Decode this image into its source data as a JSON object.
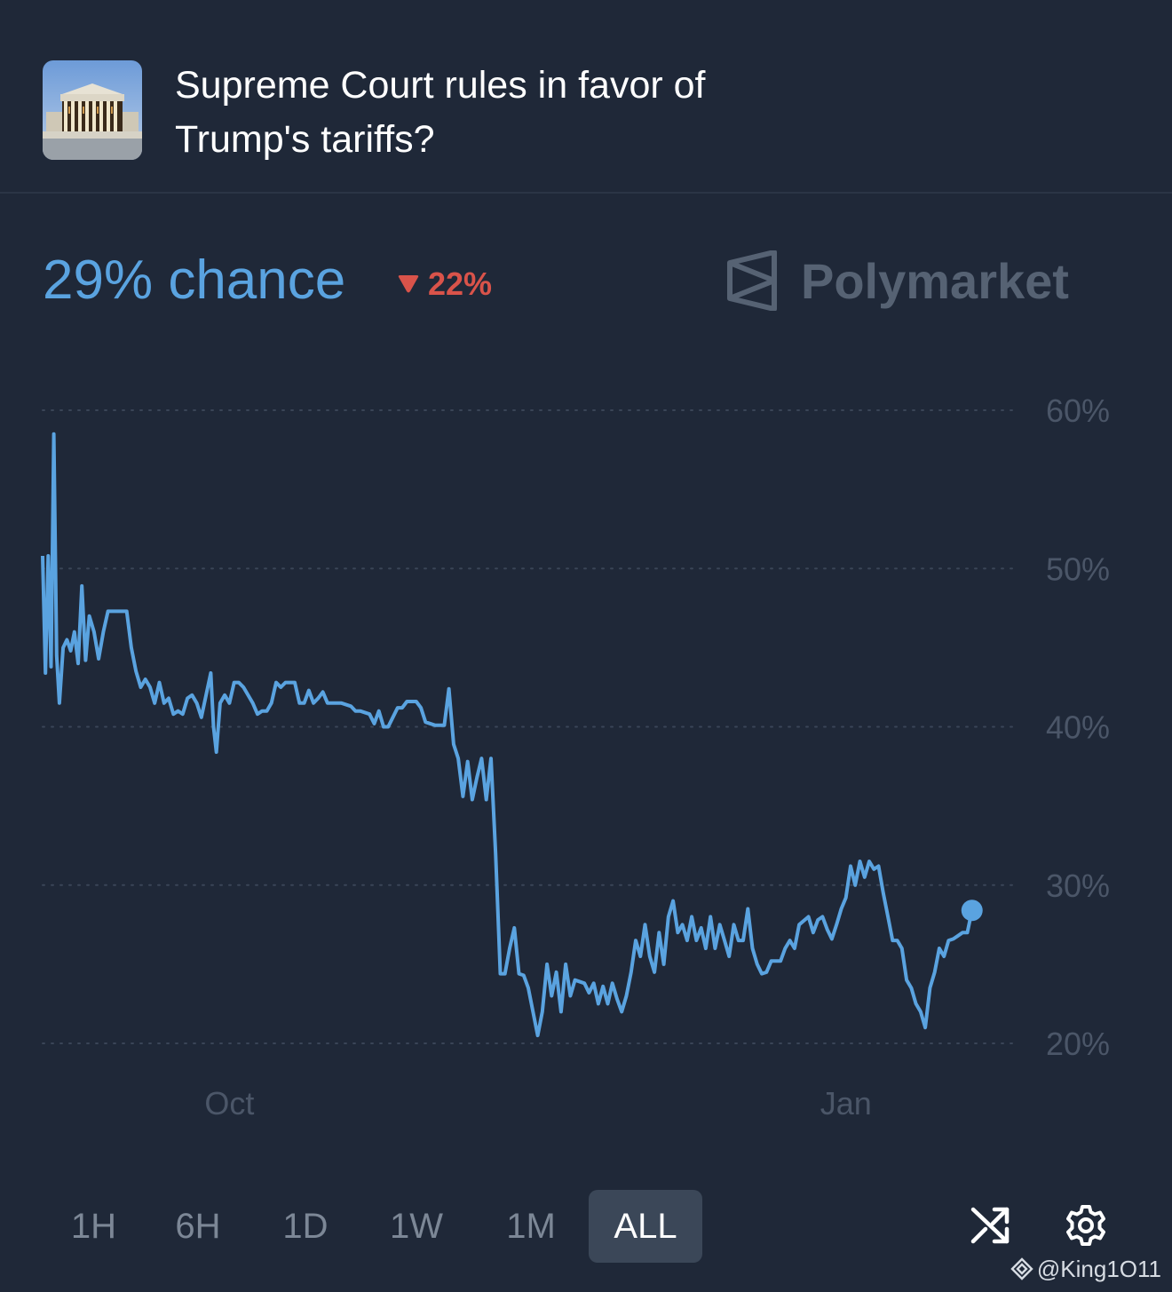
{
  "market": {
    "title": "Supreme Court rules in favor of Trump's tariffs?",
    "thumbnail_icon": "supreme-court-building-image"
  },
  "summary": {
    "chance_text": "29% chance",
    "change_text": "22%",
    "change_direction": "down",
    "change_color": "#d9534a",
    "accent_color": "#5aa3e0"
  },
  "brand": {
    "name": "Polymarket",
    "icon": "polymarket-logo-icon"
  },
  "chart_data": {
    "type": "line",
    "y_ticks": [
      "60%",
      "50%",
      "40%",
      "30%",
      "20%"
    ],
    "x_ticks": [
      {
        "label": "Oct",
        "x": 20
      },
      {
        "label": "Jan",
        "x": 86
      }
    ],
    "ylim": [
      20,
      60
    ],
    "xlim": [
      0,
      100
    ],
    "grid": "horizontal-dotted",
    "line_color": "#5aa3e0",
    "series": [
      {
        "values": [
          [
            0,
            50.8
          ],
          [
            0.3,
            43.4
          ],
          [
            0.6,
            50.8
          ],
          [
            0.9,
            43.8
          ],
          [
            1.2,
            58.5
          ],
          [
            1.5,
            44.5
          ],
          [
            1.8,
            41.5
          ],
          [
            2.2,
            45
          ],
          [
            2.6,
            45.5
          ],
          [
            3.0,
            44.8
          ],
          [
            3.4,
            46
          ],
          [
            3.8,
            44
          ],
          [
            4.2,
            48.9
          ],
          [
            4.6,
            44.2
          ],
          [
            5.0,
            47
          ],
          [
            5.5,
            46
          ],
          [
            6.0,
            44.3
          ],
          [
            6.5,
            46
          ],
          [
            7.0,
            47.3
          ],
          [
            8.0,
            47.3
          ],
          [
            9.0,
            47.3
          ],
          [
            9.5,
            45
          ],
          [
            10,
            43.5
          ],
          [
            10.5,
            42.5
          ],
          [
            11,
            43
          ],
          [
            11.5,
            42.5
          ],
          [
            12,
            41.5
          ],
          [
            12.5,
            42.8
          ],
          [
            13,
            41.5
          ],
          [
            13.5,
            41.8
          ],
          [
            14,
            40.8
          ],
          [
            14.5,
            41
          ],
          [
            15,
            40.8
          ],
          [
            15.5,
            41.8
          ],
          [
            16,
            42
          ],
          [
            16.5,
            41.5
          ],
          [
            17,
            40.6
          ],
          [
            17.5,
            42
          ],
          [
            18,
            43.4
          ],
          [
            18.3,
            40
          ],
          [
            18.6,
            38.4
          ],
          [
            19,
            41.5
          ],
          [
            19.5,
            42
          ],
          [
            20,
            41.5
          ],
          [
            20.5,
            42.8
          ],
          [
            21,
            42.8
          ],
          [
            21.5,
            42.5
          ],
          [
            22,
            42
          ],
          [
            22.5,
            41.5
          ],
          [
            23,
            40.8
          ],
          [
            23.5,
            41
          ],
          [
            24,
            41
          ],
          [
            24.5,
            41.5
          ],
          [
            25,
            42.8
          ],
          [
            25.5,
            42.5
          ],
          [
            26,
            42.8
          ],
          [
            27,
            42.8
          ],
          [
            27.5,
            41.5
          ],
          [
            28,
            41.5
          ],
          [
            28.5,
            42.3
          ],
          [
            29,
            41.5
          ],
          [
            29.5,
            41.8
          ],
          [
            30,
            42.2
          ],
          [
            30.5,
            41.5
          ],
          [
            31,
            41.5
          ],
          [
            32,
            41.5
          ],
          [
            33,
            41.3
          ],
          [
            33.5,
            41
          ],
          [
            34,
            41
          ],
          [
            35,
            40.8
          ],
          [
            35.5,
            40.2
          ],
          [
            36,
            41
          ],
          [
            36.5,
            40
          ],
          [
            37,
            40
          ],
          [
            37.5,
            40.6
          ],
          [
            38,
            41.2
          ],
          [
            38.5,
            41.2
          ],
          [
            39,
            41.6
          ],
          [
            40,
            41.6
          ],
          [
            40.5,
            41.2
          ],
          [
            41,
            40.3
          ],
          [
            42,
            40.1
          ],
          [
            43,
            40.1
          ],
          [
            43.5,
            42.4
          ],
          [
            44,
            38.9
          ],
          [
            44.5,
            38
          ],
          [
            45,
            35.6
          ],
          [
            45.5,
            37.8
          ],
          [
            46,
            35.4
          ],
          [
            46.5,
            36.8
          ],
          [
            47,
            38
          ],
          [
            47.5,
            35.4
          ],
          [
            48,
            38
          ],
          [
            48.5,
            32
          ],
          [
            49,
            24.4
          ],
          [
            49.5,
            24.4
          ],
          [
            50,
            26
          ],
          [
            50.5,
            27.3
          ],
          [
            51,
            24.4
          ],
          [
            51.5,
            24.3
          ],
          [
            52,
            23.5
          ],
          [
            52.5,
            22
          ],
          [
            53,
            20.5
          ],
          [
            53.5,
            22
          ],
          [
            54,
            25
          ],
          [
            54.5,
            23
          ],
          [
            55,
            24.5
          ],
          [
            55.5,
            22
          ],
          [
            56,
            25
          ],
          [
            56.5,
            23
          ],
          [
            57,
            24
          ],
          [
            58,
            23.8
          ],
          [
            58.5,
            23.2
          ],
          [
            59,
            23.8
          ],
          [
            59.5,
            22.5
          ],
          [
            60,
            23.6
          ],
          [
            60.5,
            22.5
          ],
          [
            61,
            23.8
          ],
          [
            61.5,
            22.8
          ],
          [
            62,
            22
          ],
          [
            62.5,
            23
          ],
          [
            63,
            24.5
          ],
          [
            63.5,
            26.5
          ],
          [
            64,
            25.5
          ],
          [
            64.5,
            27.5
          ],
          [
            65,
            25.5
          ],
          [
            65.5,
            24.5
          ],
          [
            66,
            27
          ],
          [
            66.5,
            25
          ],
          [
            67,
            28
          ],
          [
            67.5,
            29
          ],
          [
            68,
            27
          ],
          [
            68.5,
            27.5
          ],
          [
            69,
            26.5
          ],
          [
            69.5,
            28
          ],
          [
            70,
            26.5
          ],
          [
            70.5,
            27.3
          ],
          [
            71,
            26
          ],
          [
            71.5,
            28
          ],
          [
            72,
            26
          ],
          [
            72.5,
            27.5
          ],
          [
            73,
            26.5
          ],
          [
            73.5,
            25.5
          ],
          [
            74,
            27.5
          ],
          [
            74.5,
            26.5
          ],
          [
            75,
            26.5
          ],
          [
            75.5,
            28.5
          ],
          [
            76,
            26
          ],
          [
            76.5,
            25
          ],
          [
            77,
            24.4
          ],
          [
            77.5,
            24.5
          ],
          [
            78,
            25.2
          ],
          [
            79,
            25.2
          ],
          [
            79.5,
            26
          ],
          [
            80,
            26.5
          ],
          [
            80.5,
            26
          ],
          [
            81,
            27.5
          ],
          [
            82,
            28
          ],
          [
            82.5,
            27
          ],
          [
            83,
            27.8
          ],
          [
            83.5,
            28
          ],
          [
            84,
            27.2
          ],
          [
            84.5,
            26.6
          ],
          [
            85,
            27.5
          ],
          [
            85.5,
            28.5
          ],
          [
            86,
            29.2
          ],
          [
            86.5,
            31.2
          ],
          [
            87,
            30
          ],
          [
            87.5,
            31.5
          ],
          [
            88,
            30.5
          ],
          [
            88.5,
            31.5
          ],
          [
            89,
            31
          ],
          [
            89.5,
            31.2
          ],
          [
            90,
            29.5
          ],
          [
            90.5,
            28
          ],
          [
            91,
            26.5
          ],
          [
            91.5,
            26.5
          ],
          [
            92,
            26
          ],
          [
            92.5,
            24
          ],
          [
            93,
            23.5
          ],
          [
            93.5,
            22.5
          ],
          [
            94,
            22
          ],
          [
            94.5,
            21
          ],
          [
            95,
            23.5
          ],
          [
            95.5,
            24.5
          ],
          [
            96,
            26
          ],
          [
            96.5,
            25.5
          ],
          [
            97,
            26.5
          ],
          [
            97.5,
            26.6
          ],
          [
            98,
            26.8
          ],
          [
            98.5,
            27
          ],
          [
            99,
            27
          ],
          [
            99.5,
            28.4
          ]
        ]
      }
    ]
  },
  "time_ranges": {
    "items": [
      "1H",
      "6H",
      "1D",
      "1W",
      "1M",
      "ALL"
    ],
    "active": "ALL"
  },
  "tools": {
    "shuffle_icon": "shuffle-icon",
    "settings_icon": "gear-icon"
  },
  "watermark": {
    "text": "@King1O11",
    "icon": "binance-square-icon"
  }
}
